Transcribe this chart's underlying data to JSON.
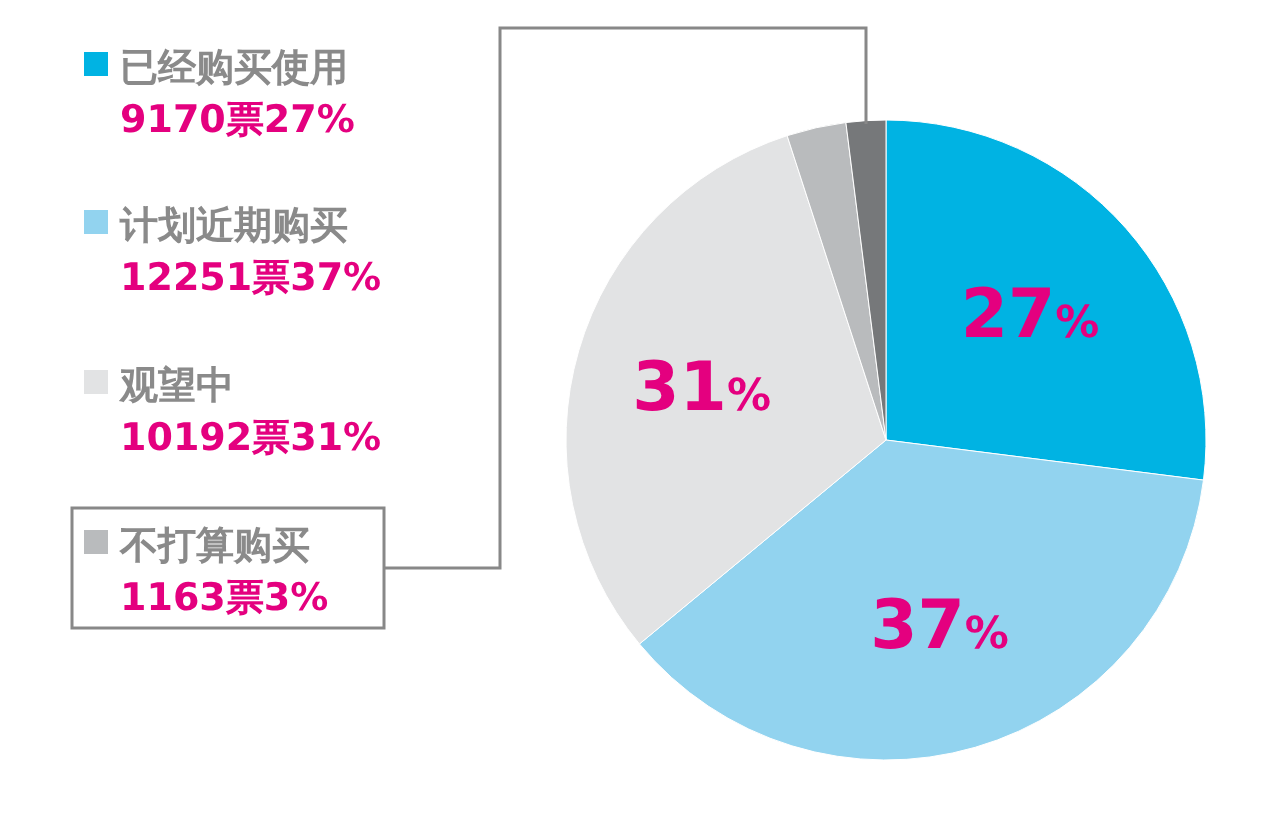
{
  "chart_data": {
    "type": "pie",
    "categories": [
      "已经购买使用",
      "计划近期购买",
      "观望中",
      "不打算购买",
      null
    ],
    "values": [
      27,
      37,
      31,
      3,
      2
    ],
    "colors": [
      "#00b3e3",
      "#92d3ef",
      "#e2e3e4",
      "#b9bbbd",
      "#76787a"
    ],
    "value_labels": [
      "27%",
      "37%",
      "31%",
      null,
      null
    ],
    "annotations": [
      "9170票27%",
      "12251票37%",
      "10192票31%",
      "1163票3%"
    ],
    "legend": "left"
  }
}
